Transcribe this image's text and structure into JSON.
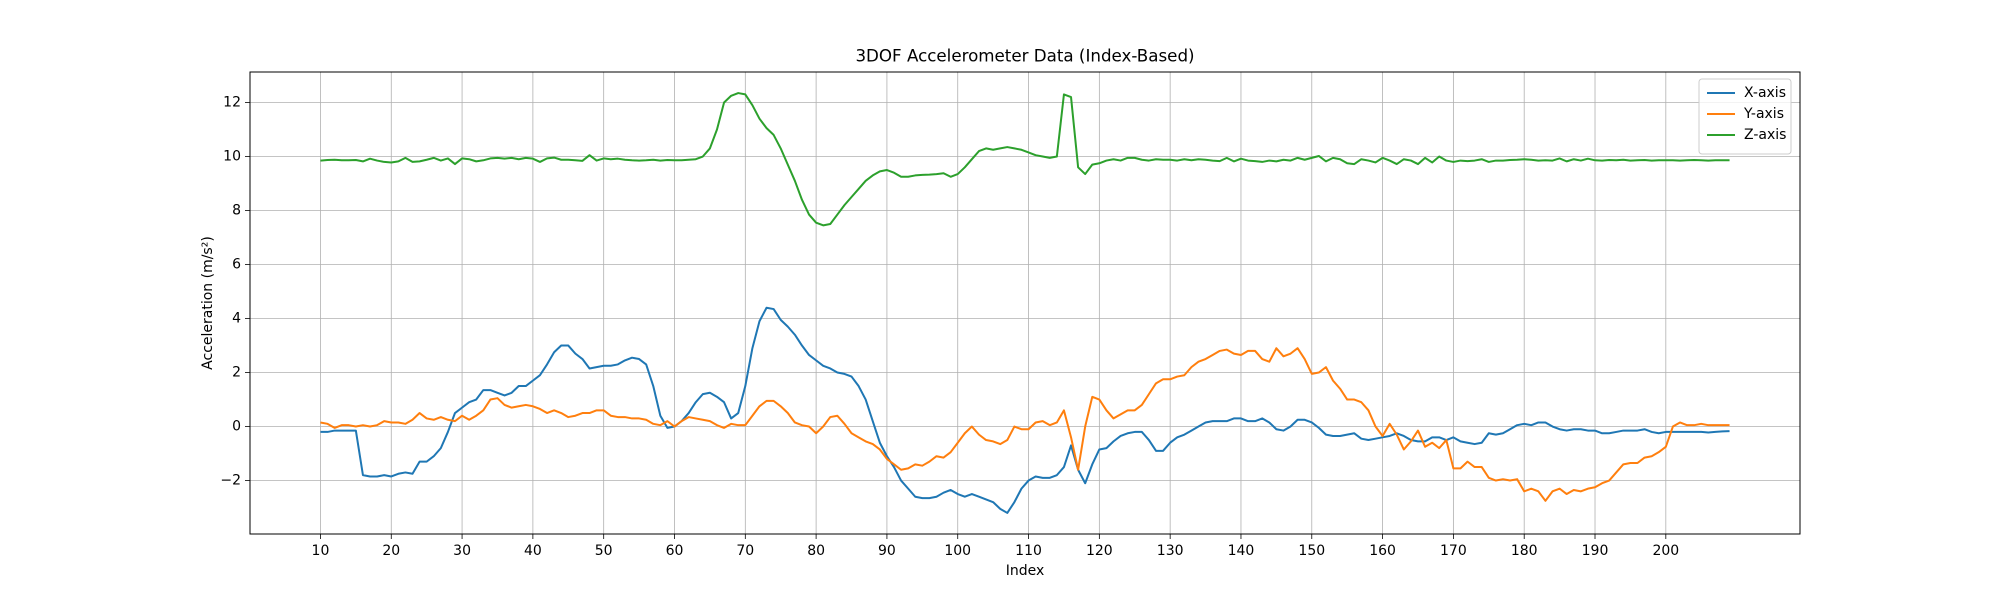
{
  "chart_data": {
    "type": "line",
    "title": "3DOF Accelerometer Data (Index-Based)",
    "xlabel": "Index",
    "ylabel": "Acceleration (m/s²)",
    "x": [
      10,
      11,
      12,
      13,
      14,
      15,
      16,
      17,
      18,
      19,
      20,
      21,
      22,
      23,
      24,
      25,
      26,
      27,
      28,
      29,
      30,
      31,
      32,
      33,
      34,
      35,
      36,
      37,
      38,
      39,
      40,
      41,
      42,
      43,
      44,
      45,
      46,
      47,
      48,
      49,
      50,
      51,
      52,
      53,
      54,
      55,
      56,
      57,
      58,
      59,
      60,
      61,
      62,
      63,
      64,
      65,
      66,
      67,
      68,
      69,
      70,
      71,
      72,
      73,
      74,
      75,
      76,
      77,
      78,
      79,
      80,
      81,
      82,
      83,
      84,
      85,
      86,
      87,
      88,
      89,
      90,
      91,
      92,
      93,
      94,
      95,
      96,
      97,
      98,
      99,
      100,
      101,
      102,
      103,
      104,
      105,
      106,
      107,
      108,
      109,
      110,
      111,
      112,
      113,
      114,
      115,
      116,
      117,
      118,
      119,
      120,
      121,
      122,
      123,
      124,
      125,
      126,
      127,
      128,
      129,
      130,
      131,
      132,
      133,
      134,
      135,
      136,
      137,
      138,
      139,
      140,
      141,
      142,
      143,
      144,
      145,
      146,
      147,
      148,
      149,
      150,
      151,
      152,
      153,
      154,
      155,
      156,
      157,
      158,
      159,
      160,
      161,
      162,
      163,
      164,
      165,
      166,
      167,
      168,
      169,
      170,
      171,
      172,
      173,
      174,
      175,
      176,
      177,
      178,
      179,
      180,
      181,
      182,
      183,
      184,
      185,
      186,
      187,
      188,
      189,
      190,
      191,
      192,
      193,
      194,
      195,
      196,
      197,
      198,
      199,
      200,
      201,
      202,
      203,
      204,
      205,
      206,
      207,
      208,
      209
    ],
    "series": [
      {
        "name": "X-axis",
        "color": "#1f77b4",
        "values": [
          -0.2,
          -0.2,
          -0.15,
          -0.15,
          -0.15,
          -0.15,
          -1.8,
          -1.85,
          -1.85,
          -1.8,
          -1.85,
          -1.75,
          -1.7,
          -1.75,
          -1.3,
          -1.3,
          -1.1,
          -0.8,
          -0.2,
          0.5,
          0.7,
          0.9,
          1.0,
          1.35,
          1.35,
          1.25,
          1.15,
          1.25,
          1.5,
          1.5,
          1.7,
          1.9,
          2.3,
          2.75,
          3.0,
          3.0,
          2.7,
          2.5,
          2.15,
          2.2,
          2.25,
          2.25,
          2.3,
          2.45,
          2.55,
          2.5,
          2.3,
          1.5,
          0.4,
          -0.05,
          0.0,
          0.2,
          0.5,
          0.9,
          1.2,
          1.25,
          1.1,
          0.9,
          0.3,
          0.5,
          1.5,
          2.9,
          3.9,
          4.4,
          4.35,
          3.95,
          3.7,
          3.4,
          3.0,
          2.65,
          2.45,
          2.25,
          2.15,
          2.0,
          1.95,
          1.85,
          1.5,
          1.0,
          0.2,
          -0.6,
          -1.1,
          -1.5,
          -2.0,
          -2.3,
          -2.6,
          -2.65,
          -2.65,
          -2.6,
          -2.45,
          -2.35,
          -2.5,
          -2.6,
          -2.5,
          -2.6,
          -2.7,
          -2.8,
          -3.05,
          -3.2,
          -2.8,
          -2.3,
          -2.0,
          -1.85,
          -1.9,
          -1.9,
          -1.8,
          -1.5,
          -0.7,
          -1.6,
          -2.1,
          -1.4,
          -0.85,
          -0.8,
          -0.55,
          -0.35,
          -0.25,
          -0.2,
          -0.2,
          -0.5,
          -0.9,
          -0.9,
          -0.6,
          -0.4,
          -0.3,
          -0.15,
          0.0,
          0.15,
          0.2,
          0.2,
          0.2,
          0.3,
          0.3,
          0.2,
          0.2,
          0.3,
          0.15,
          -0.1,
          -0.15,
          0.0,
          0.25,
          0.25,
          0.15,
          -0.05,
          -0.3,
          -0.35,
          -0.35,
          -0.3,
          -0.25,
          -0.45,
          -0.5,
          -0.45,
          -0.4,
          -0.35,
          -0.25,
          -0.35,
          -0.5,
          -0.55,
          -0.55,
          -0.4,
          -0.4,
          -0.5,
          -0.4,
          -0.55,
          -0.6,
          -0.65,
          -0.6,
          -0.25,
          -0.3,
          -0.25,
          -0.1,
          0.05,
          0.1,
          0.05,
          0.15,
          0.15,
          0.0,
          -0.1,
          -0.15,
          -0.1,
          -0.1,
          -0.15,
          -0.15,
          -0.25,
          -0.25,
          -0.2,
          -0.15,
          -0.15,
          -0.15,
          -0.1,
          -0.2,
          -0.25,
          -0.2,
          -0.2,
          -0.2,
          -0.2,
          -0.2,
          -0.2,
          -0.22,
          -0.2,
          -0.18,
          -0.17
        ]
      },
      {
        "name": "Y-axis",
        "color": "#ff7f0e",
        "values": [
          0.15,
          0.1,
          -0.05,
          0.05,
          0.05,
          0.0,
          0.05,
          0.0,
          0.05,
          0.2,
          0.15,
          0.15,
          0.1,
          0.25,
          0.5,
          0.3,
          0.25,
          0.35,
          0.25,
          0.2,
          0.4,
          0.25,
          0.4,
          0.6,
          1.0,
          1.05,
          0.8,
          0.7,
          0.75,
          0.8,
          0.75,
          0.65,
          0.5,
          0.6,
          0.5,
          0.35,
          0.4,
          0.5,
          0.5,
          0.6,
          0.6,
          0.4,
          0.35,
          0.35,
          0.3,
          0.3,
          0.25,
          0.1,
          0.05,
          0.2,
          0.0,
          0.2,
          0.35,
          0.3,
          0.25,
          0.2,
          0.05,
          -0.05,
          0.1,
          0.05,
          0.05,
          0.4,
          0.75,
          0.95,
          0.95,
          0.75,
          0.5,
          0.15,
          0.05,
          0.0,
          -0.25,
          0.0,
          0.35,
          0.4,
          0.1,
          -0.25,
          -0.4,
          -0.55,
          -0.65,
          -0.85,
          -1.2,
          -1.4,
          -1.6,
          -1.55,
          -1.4,
          -1.45,
          -1.3,
          -1.1,
          -1.15,
          -0.95,
          -0.6,
          -0.25,
          0.0,
          -0.3,
          -0.5,
          -0.55,
          -0.65,
          -0.5,
          0.0,
          -0.1,
          -0.1,
          0.15,
          0.2,
          0.05,
          0.15,
          0.6,
          -0.4,
          -1.6,
          0.0,
          1.1,
          1.0,
          0.6,
          0.3,
          0.45,
          0.6,
          0.6,
          0.8,
          1.2,
          1.6,
          1.75,
          1.75,
          1.85,
          1.9,
          2.2,
          2.4,
          2.5,
          2.65,
          2.8,
          2.85,
          2.7,
          2.65,
          2.8,
          2.8,
          2.5,
          2.4,
          2.9,
          2.6,
          2.7,
          2.9,
          2.5,
          1.95,
          2.0,
          2.2,
          1.7,
          1.4,
          1.0,
          1.0,
          0.9,
          0.6,
          0.0,
          -0.35,
          0.1,
          -0.3,
          -0.85,
          -0.55,
          -0.15,
          -0.75,
          -0.6,
          -0.8,
          -0.5,
          -1.55,
          -1.55,
          -1.3,
          -1.5,
          -1.5,
          -1.9,
          -2.0,
          -1.95,
          -2.0,
          -1.95,
          -2.4,
          -2.3,
          -2.4,
          -2.75,
          -2.4,
          -2.3,
          -2.5,
          -2.35,
          -2.4,
          -2.3,
          -2.25,
          -2.1,
          -2.0,
          -1.7,
          -1.4,
          -1.35,
          -1.35,
          -1.15,
          -1.1,
          -0.95,
          -0.75,
          0.0,
          0.15,
          0.05,
          0.05,
          0.1,
          0.05,
          0.05,
          0.05,
          0.05
        ]
      },
      {
        "name": "Z-axis",
        "color": "#2ca02c",
        "values": [
          9.85,
          9.87,
          9.88,
          9.86,
          9.86,
          9.87,
          9.82,
          9.92,
          9.85,
          9.8,
          9.78,
          9.82,
          9.95,
          9.8,
          9.82,
          9.88,
          9.95,
          9.85,
          9.93,
          9.72,
          9.93,
          9.9,
          9.82,
          9.86,
          9.93,
          9.95,
          9.92,
          9.95,
          9.9,
          9.95,
          9.92,
          9.8,
          9.93,
          9.96,
          9.88,
          9.88,
          9.86,
          9.84,
          10.05,
          9.85,
          9.93,
          9.9,
          9.92,
          9.88,
          9.86,
          9.85,
          9.86,
          9.88,
          9.85,
          9.87,
          9.86,
          9.86,
          9.88,
          9.9,
          10.0,
          10.3,
          11.0,
          12.0,
          12.25,
          12.35,
          12.3,
          11.9,
          11.4,
          11.05,
          10.8,
          10.3,
          9.7,
          9.1,
          8.4,
          7.85,
          7.55,
          7.45,
          7.5,
          7.85,
          8.2,
          8.5,
          8.8,
          9.1,
          9.3,
          9.45,
          9.5,
          9.4,
          9.25,
          9.25,
          9.3,
          9.32,
          9.33,
          9.35,
          9.38,
          9.25,
          9.35,
          9.6,
          9.9,
          10.2,
          10.3,
          10.25,
          10.3,
          10.35,
          10.3,
          10.25,
          10.15,
          10.05,
          10.0,
          9.95,
          10.0,
          12.3,
          12.2,
          9.6,
          9.35,
          9.7,
          9.75,
          9.85,
          9.9,
          9.85,
          9.95,
          9.95,
          9.88,
          9.85,
          9.9,
          9.88,
          9.88,
          9.85,
          9.9,
          9.86,
          9.9,
          9.88,
          9.85,
          9.83,
          9.95,
          9.82,
          9.92,
          9.85,
          9.83,
          9.8,
          9.85,
          9.82,
          9.88,
          9.85,
          9.95,
          9.88,
          9.95,
          10.02,
          9.82,
          9.95,
          9.9,
          9.75,
          9.72,
          9.9,
          9.85,
          9.78,
          9.95,
          9.85,
          9.72,
          9.9,
          9.85,
          9.72,
          9.95,
          9.78,
          10.0,
          9.85,
          9.8,
          9.85,
          9.83,
          9.85,
          9.9,
          9.8,
          9.85,
          9.85,
          9.87,
          9.88,
          9.9,
          9.88,
          9.85,
          9.86,
          9.85,
          9.93,
          9.82,
          9.9,
          9.85,
          9.92,
          9.86,
          9.85,
          9.87,
          9.86,
          9.88,
          9.85,
          9.86,
          9.87,
          9.85,
          9.86,
          9.86,
          9.86,
          9.85,
          9.86,
          9.87,
          9.86,
          9.85,
          9.86,
          9.86,
          9.86
        ]
      }
    ],
    "xlim": [
      0.05,
      218.95
    ],
    "xticks": [
      10,
      20,
      30,
      40,
      50,
      60,
      70,
      80,
      90,
      100,
      110,
      120,
      130,
      140,
      150,
      160,
      170,
      180,
      190,
      200
    ],
    "ylim": [
      -3.98,
      13.13
    ],
    "yticks": [
      {
        "value": -2,
        "label": "−2"
      },
      0,
      2,
      4,
      6,
      8,
      10,
      12
    ],
    "grid": true,
    "legend": "upper right"
  }
}
